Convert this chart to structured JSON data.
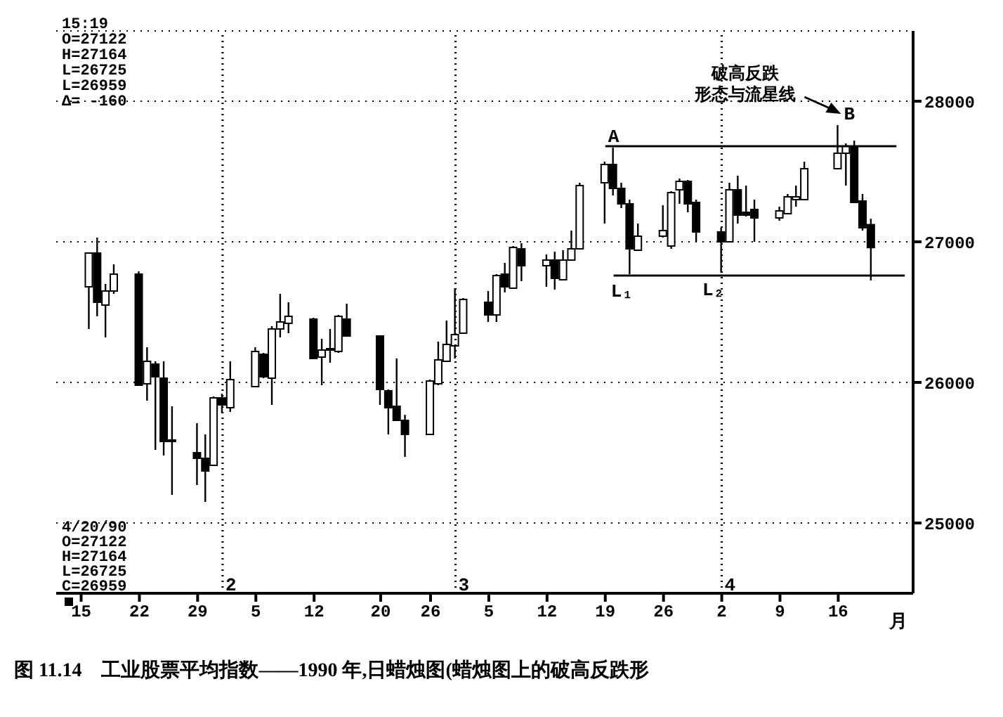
{
  "chart_data": {
    "type": "candlestick",
    "x": [
      "1990-01-16",
      "1990-01-17",
      "1990-01-18",
      "1990-01-19",
      "1990-01-22",
      "1990-01-23",
      "1990-01-24",
      "1990-01-25",
      "1990-01-26",
      "1990-01-29",
      "1990-01-30",
      "1990-01-31",
      "1990-02-01",
      "1990-02-02",
      "1990-02-05",
      "1990-02-06",
      "1990-02-07",
      "1990-02-08",
      "1990-02-09",
      "1990-02-12",
      "1990-02-13",
      "1990-02-14",
      "1990-02-15",
      "1990-02-16",
      "1990-02-20",
      "1990-02-21",
      "1990-02-22",
      "1990-02-23",
      "1990-02-26",
      "1990-02-27",
      "1990-02-28",
      "1990-03-01",
      "1990-03-02",
      "1990-03-05",
      "1990-03-06",
      "1990-03-07",
      "1990-03-08",
      "1990-03-09",
      "1990-03-12",
      "1990-03-13",
      "1990-03-14",
      "1990-03-15",
      "1990-03-16",
      "1990-03-19",
      "1990-03-20",
      "1990-03-21",
      "1990-03-22",
      "1990-03-23",
      "1990-03-26",
      "1990-03-27",
      "1990-03-28",
      "1990-03-29",
      "1990-03-30",
      "1990-04-02",
      "1990-04-03",
      "1990-04-04",
      "1990-04-05",
      "1990-04-06",
      "1990-04-09",
      "1990-04-10",
      "1990-04-11",
      "1990-04-12",
      "1990-04-16",
      "1990-04-17",
      "1990-04-18",
      "1990-04-19",
      "1990-04-20"
    ],
    "ohlc": [
      [
        26680,
        26920,
        26380,
        26920
      ],
      [
        26920,
        27030,
        26470,
        26570
      ],
      [
        26550,
        26700,
        26320,
        26650
      ],
      [
        26650,
        26840,
        26630,
        26770
      ],
      [
        26770,
        26790,
        25980,
        25980
      ],
      [
        25990,
        26250,
        25870,
        26150
      ],
      [
        26130,
        26150,
        25520,
        26040
      ],
      [
        26030,
        26150,
        25480,
        25580
      ],
      [
        25590,
        25830,
        25200,
        25580
      ],
      [
        25500,
        25710,
        25270,
        25460
      ],
      [
        25460,
        25630,
        25150,
        25370
      ],
      [
        25410,
        25900,
        25410,
        25890
      ],
      [
        25890,
        25920,
        25780,
        25840
      ],
      [
        25820,
        26150,
        25790,
        26020
      ],
      [
        25970,
        26250,
        25970,
        26220
      ],
      [
        26200,
        26210,
        26030,
        26040
      ],
      [
        26030,
        26400,
        25840,
        26380
      ],
      [
        26380,
        26630,
        26320,
        26430
      ],
      [
        26420,
        26570,
        26350,
        26470
      ],
      [
        26450,
        26460,
        26170,
        26170
      ],
      [
        26180,
        26310,
        25980,
        26230
      ],
      [
        26230,
        26380,
        26140,
        26240
      ],
      [
        26220,
        26480,
        26210,
        26470
      ],
      [
        26450,
        26560,
        26330,
        26330
      ],
      [
        26330,
        26330,
        25840,
        25950
      ],
      [
        25940,
        25950,
        25630,
        25820
      ],
      [
        25830,
        26170,
        25730,
        25730
      ],
      [
        25730,
        25770,
        25470,
        25630
      ],
      [
        25630,
        26020,
        25630,
        26010
      ],
      [
        25990,
        26290,
        25980,
        26160
      ],
      [
        26150,
        26440,
        26150,
        26270
      ],
      [
        26260,
        26670,
        26170,
        26340
      ],
      [
        26350,
        26600,
        26350,
        26590
      ],
      [
        26570,
        26650,
        26430,
        26480
      ],
      [
        26480,
        26770,
        26430,
        26760
      ],
      [
        26770,
        26850,
        26640,
        26680
      ],
      [
        26670,
        26970,
        26670,
        26960
      ],
      [
        26950,
        26990,
        26720,
        26830
      ],
      [
        26830,
        26910,
        26680,
        26870
      ],
      [
        26870,
        26930,
        26660,
        26740
      ],
      [
        26730,
        26940,
        26730,
        26870
      ],
      [
        26870,
        27080,
        26870,
        26950
      ],
      [
        26950,
        27420,
        26950,
        27400
      ],
      [
        27420,
        27570,
        27130,
        27550
      ],
      [
        27550,
        27670,
        27330,
        27380
      ],
      [
        27380,
        27420,
        27240,
        27270
      ],
      [
        27270,
        27300,
        26770,
        26950
      ],
      [
        26940,
        27130,
        26940,
        27040
      ],
      [
        27040,
        27260,
        27030,
        27080
      ],
      [
        26970,
        27360,
        26950,
        27350
      ],
      [
        27370,
        27450,
        27270,
        27430
      ],
      [
        27430,
        27440,
        27210,
        27270
      ],
      [
        27280,
        27300,
        27000,
        27070
      ],
      [
        27070,
        27100,
        26780,
        27000
      ],
      [
        27000,
        27420,
        27000,
        27370
      ],
      [
        27370,
        27470,
        27130,
        27190
      ],
      [
        27210,
        27400,
        27180,
        27190
      ],
      [
        27230,
        27300,
        27000,
        27170
      ],
      [
        27170,
        27250,
        27150,
        27220
      ],
      [
        27200,
        27340,
        27200,
        27320
      ],
      [
        27300,
        27400,
        27250,
        27320
      ],
      [
        27300,
        27570,
        27300,
        27520
      ],
      [
        27520,
        27830,
        27520,
        27630
      ],
      [
        27630,
        27700,
        27400,
        27680
      ],
      [
        27680,
        27720,
        27280,
        27280
      ],
      [
        27290,
        27340,
        27080,
        27100
      ],
      [
        27122,
        27164,
        26725,
        26959
      ]
    ],
    "color": "#000000",
    "series": [
      {
        "type": "line",
        "x": [
          "1990-03-19",
          "1990-04-23"
        ],
        "values": [
          27680,
          27680
        ],
        "color": "#000000"
      },
      {
        "type": "line",
        "x": [
          "1990-03-20",
          "1990-04-24"
        ],
        "values": [
          26760,
          26760
        ],
        "color": "#000000"
      }
    ],
    "xlabel": "月",
    "xlim": [
      "1990-01-12",
      "1990-04-25"
    ],
    "xticks": [
      {
        "value": "1990-01-15",
        "label": "15"
      },
      {
        "value": "1990-01-22",
        "label": "22"
      },
      {
        "value": "1990-01-29",
        "label": "29"
      },
      {
        "value": "1990-02-05",
        "label": "5"
      },
      {
        "value": "1990-02-12",
        "label": "12"
      },
      {
        "value": "1990-02-20",
        "label": "20"
      },
      {
        "value": "1990-02-26",
        "label": "26"
      },
      {
        "value": "1990-03-05",
        "label": "5"
      },
      {
        "value": "1990-03-12",
        "label": "12"
      },
      {
        "value": "1990-03-19",
        "label": "19"
      },
      {
        "value": "1990-03-26",
        "label": "26"
      },
      {
        "value": "1990-04-02",
        "label": "2"
      },
      {
        "value": "1990-04-09",
        "label": "9"
      },
      {
        "value": "1990-04-16",
        "label": "16"
      }
    ],
    "ylim": [
      24500,
      28500
    ],
    "yticks": [
      25000,
      26000,
      27000,
      28000
    ],
    "grid": "y",
    "ref_lines": [
      {
        "axis": "x",
        "value": "1990-02-01",
        "label": "2",
        "line_style": "dotted"
      },
      {
        "axis": "x",
        "value": "1990-03-01",
        "label": "3",
        "line_style": "dotted"
      },
      {
        "axis": "x",
        "value": "1990-04-02",
        "label": "4",
        "line_style": "dotted"
      }
    ],
    "annotations": [
      "15:19\nO=27122\nH=27164\nL=26725\nL=26959\nΔ= -160",
      "4/20/90\nO=27122\nH=27164\nL=26725\nC=26959",
      "图 11.14　工业股票平均指数——1990 年,日蜡烛图(蜡烛图上的破高反跌形",
      {
        "text": "A",
        "x": "1990-03-20",
        "y": 27670
      },
      {
        "text": "B",
        "x": "1990-04-16",
        "y": 27830
      },
      {
        "text": "L₁",
        "x": "1990-03-22",
        "y": 26770
      },
      {
        "text": "L₂",
        "x": "1990-04-02",
        "y": 26780
      },
      {
        "text": "破高反跌形态与流星线",
        "x": "1990-04-16",
        "y": 27830
      }
    ]
  }
}
